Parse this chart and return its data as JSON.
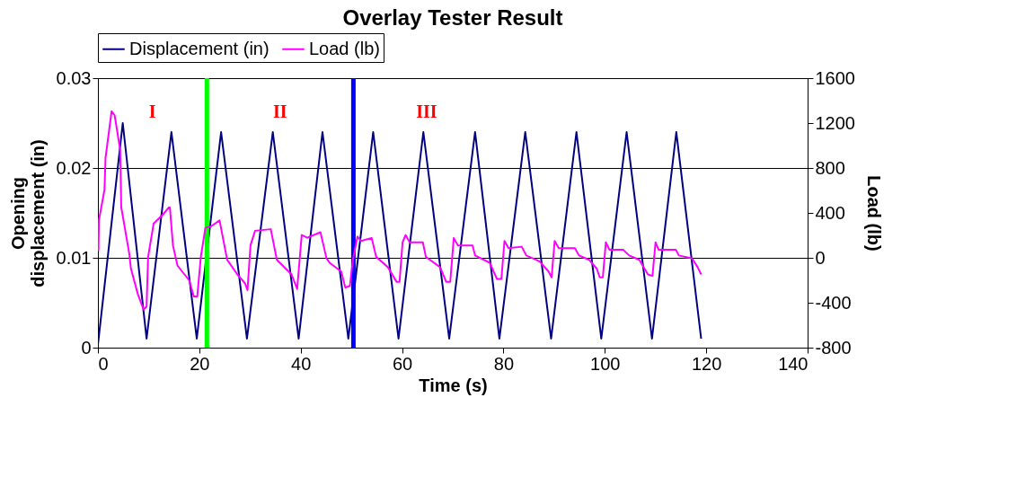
{
  "chart_data": {
    "type": "line",
    "title": "Overlay Tester Result",
    "xlabel": "Time (s)",
    "ylabel": "Opening displacement (in)",
    "y2label": "Load (lb)",
    "xlim": [
      0,
      140
    ],
    "xticks": [
      0,
      20,
      40,
      60,
      80,
      100,
      120,
      140
    ],
    "ylim": [
      0,
      0.03
    ],
    "yticks": [
      0,
      0.01,
      0.02,
      0.03
    ],
    "y2lim": [
      -800,
      1600
    ],
    "y2ticks": [
      -800,
      -400,
      0,
      400,
      800,
      1200,
      1600
    ],
    "grid": "y",
    "legend": "top",
    "marker": "none",
    "line_style": "solid",
    "series": [
      {
        "name": "Displacement (in)",
        "color": "#000080",
        "x": [
          0,
          4.9,
          9.6,
          14.5,
          19.5,
          24.3,
          29.4,
          34.5,
          39.6,
          44.3,
          49.4,
          54.3,
          59.3,
          64.2,
          69.3,
          74.4,
          79.2,
          84.3,
          89.4,
          94.4,
          99.3,
          104.3,
          109.3,
          114.1,
          119.0
        ],
        "values": [
          0.0003,
          0.025,
          0.001,
          0.024,
          0.001,
          0.024,
          0.001,
          0.024,
          0.001,
          0.024,
          0.001,
          0.024,
          0.001,
          0.024,
          0.001,
          0.024,
          0.001,
          0.024,
          0.001,
          0.024,
          0.001,
          0.024,
          0.001,
          0.024,
          0.001
        ]
      },
      {
        "name": "Load (lb)",
        "color": "#ff00ff",
        "axis": "y2",
        "x": [
          0.1,
          0.2,
          1.3,
          1.5,
          2.7,
          3.3,
          4.4,
          4.6,
          6.2,
          6.5,
          7.9,
          9.0,
          9.6,
          9.9,
          11.0,
          12.8,
          14.0,
          14.2,
          14.8,
          15.7,
          18.0,
          18.9,
          19.6,
          20.3,
          21.2,
          22.3,
          24.0,
          25.5,
          27.5,
          29.0,
          29.5,
          30.1,
          31.0,
          34.1,
          35.3,
          38.2,
          39.3,
          40.2,
          41.3,
          43.9,
          45.1,
          45.7,
          48.0,
          48.8,
          49.7,
          50.3,
          51.2,
          51.9,
          54.0,
          54.9,
          57.2,
          58.9,
          59.5,
          60.1,
          60.7,
          61.5,
          64.1,
          64.7,
          67.5,
          68.7,
          69.5,
          70.2,
          71.0,
          73.9,
          74.4,
          77.3,
          78.7,
          79.6,
          80.2,
          81.0,
          83.6,
          84.5,
          87.1,
          88.9,
          89.5,
          90.1,
          90.9,
          94.1,
          94.9,
          96.9,
          98.4,
          99.0,
          99.6,
          100.2,
          100.9,
          103.6,
          104.8,
          106.8,
          108.5,
          109.4,
          110.0,
          110.6,
          114.0,
          114.6,
          117.2,
          118.3,
          119.0
        ],
        "values": [
          60,
          335,
          608,
          890,
          1306,
          1270,
          958,
          452,
          33,
          -94,
          -327,
          -460,
          -434,
          8,
          306,
          384,
          449,
          449,
          111,
          -70,
          -200,
          -343,
          -343,
          8,
          267,
          280,
          333,
          -18,
          -148,
          -226,
          -288,
          111,
          241,
          255,
          -18,
          -148,
          -278,
          203,
          179,
          228,
          -5,
          -44,
          -122,
          -265,
          -250,
          -18,
          189,
          150,
          177,
          8,
          -83,
          -213,
          -213,
          138,
          203,
          138,
          138,
          8,
          -83,
          -213,
          -213,
          177,
          111,
          111,
          21,
          -44,
          -187,
          -187,
          150,
          86,
          99,
          21,
          -31,
          -122,
          -174,
          150,
          86,
          86,
          21,
          -18,
          -96,
          -174,
          -174,
          138,
          73,
          73,
          21,
          -18,
          -148,
          -161,
          138,
          73,
          73,
          21,
          -5,
          -83,
          -148
        ]
      }
    ],
    "ref_lines": [
      {
        "axis": "x",
        "value": 21.5,
        "color": "#00ff00"
      },
      {
        "axis": "x",
        "value": 50.4,
        "color": "#0000ff"
      }
    ],
    "annotations": [
      "I",
      "II",
      "III"
    ]
  }
}
